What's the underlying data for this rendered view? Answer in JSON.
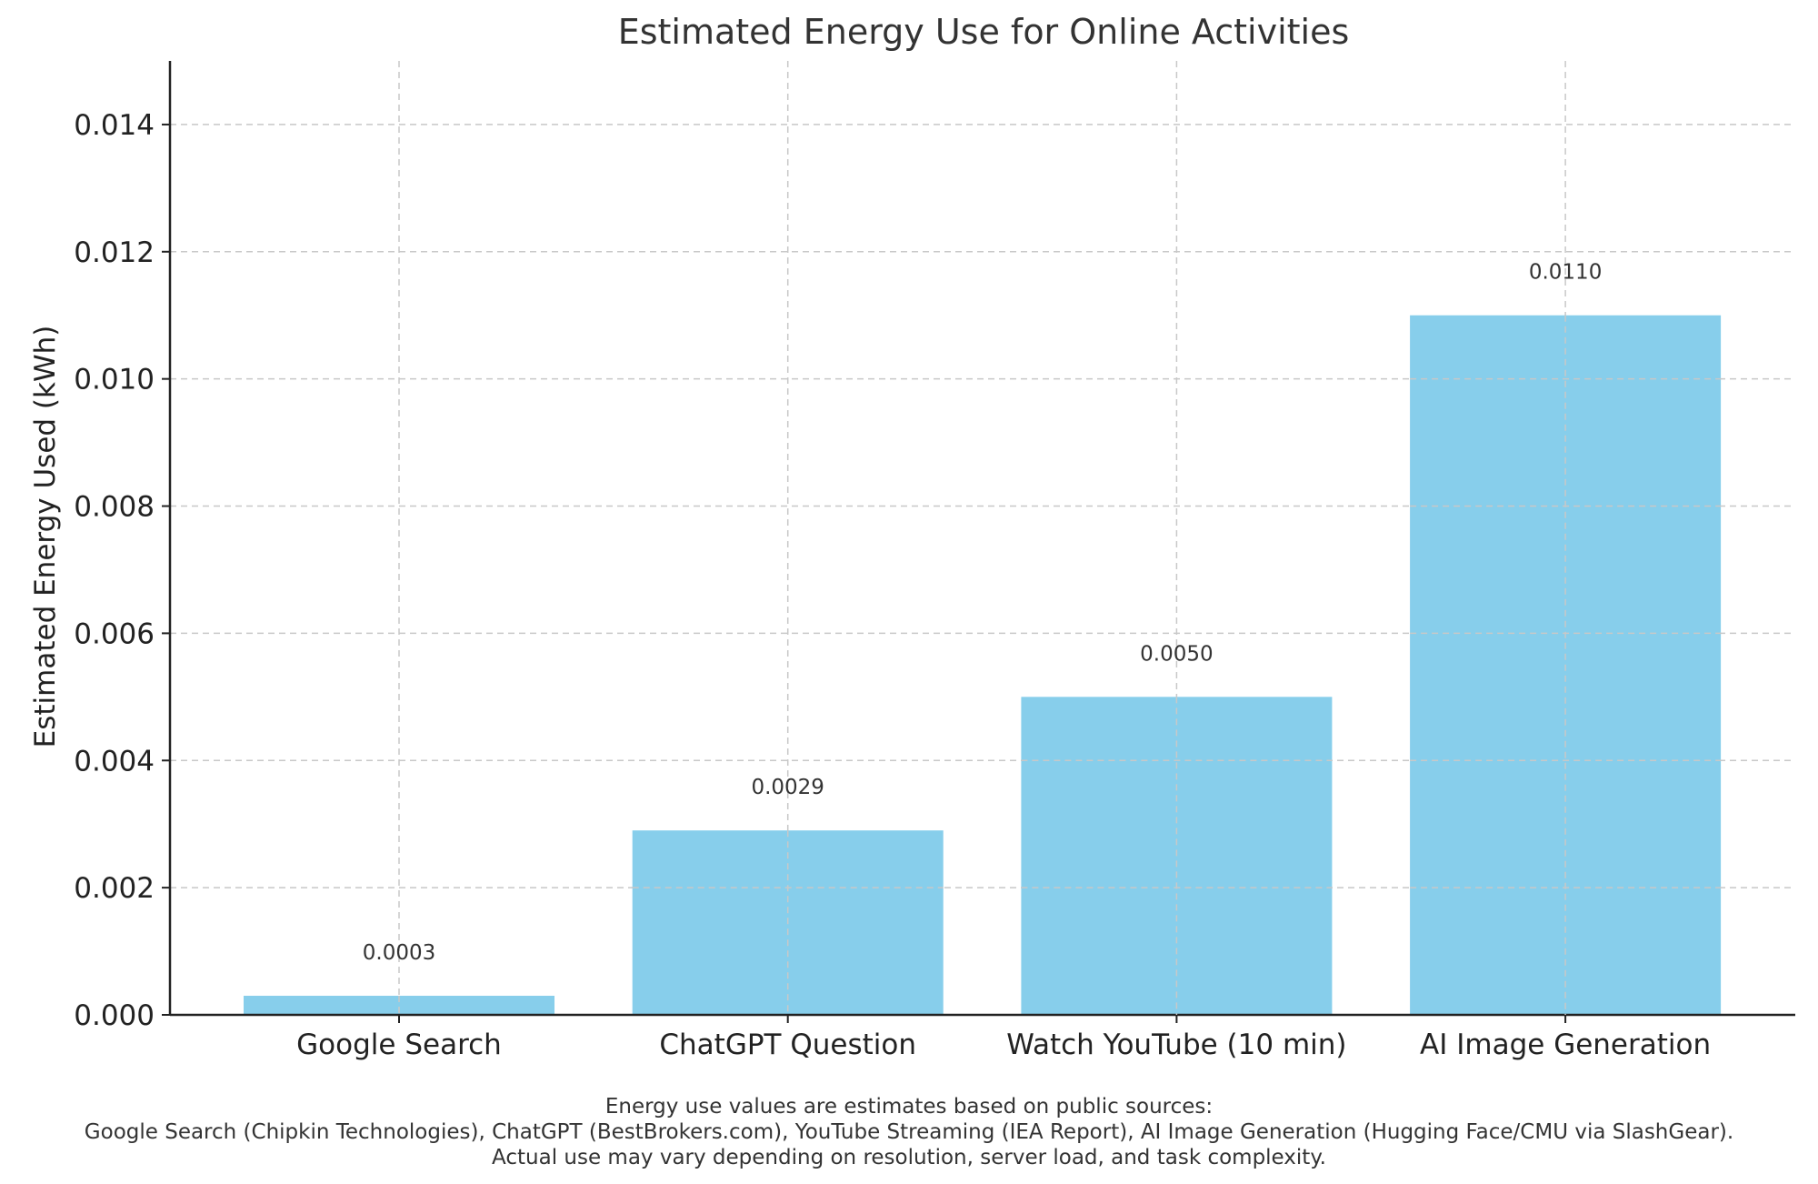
{
  "chart_data": {
    "type": "bar",
    "title": "Estimated Energy Use for Online Activities",
    "xlabel": "",
    "ylabel": "Estimated Energy Used (kWh)",
    "categories": [
      "Google Search",
      "ChatGPT Question",
      "Watch YouTube (10 min)",
      "AI Image Generation"
    ],
    "values": [
      0.0003,
      0.0029,
      0.005,
      0.011
    ],
    "data_labels": [
      "0.0003",
      "0.0029",
      "0.0050",
      "0.0110"
    ],
    "ylim": [
      0,
      0.015
    ],
    "yticks": [
      0,
      0.002,
      0.004,
      0.006,
      0.008,
      0.01,
      0.012,
      0.014
    ],
    "ytick_labels": [
      "0.000",
      "0.002",
      "0.004",
      "0.006",
      "0.008",
      "0.010",
      "0.012",
      "0.014"
    ],
    "grid": true,
    "bar_color": "#87CEEB"
  },
  "footnote": {
    "line1": "Energy use values are estimates based on public sources:",
    "line2": "Google Search (Chipkin Technologies), ChatGPT (BestBrokers.com), YouTube Streaming (IEA Report), AI Image Generation (Hugging Face/CMU via SlashGear).",
    "line3": "Actual use may vary depending on resolution, server load, and task complexity."
  }
}
